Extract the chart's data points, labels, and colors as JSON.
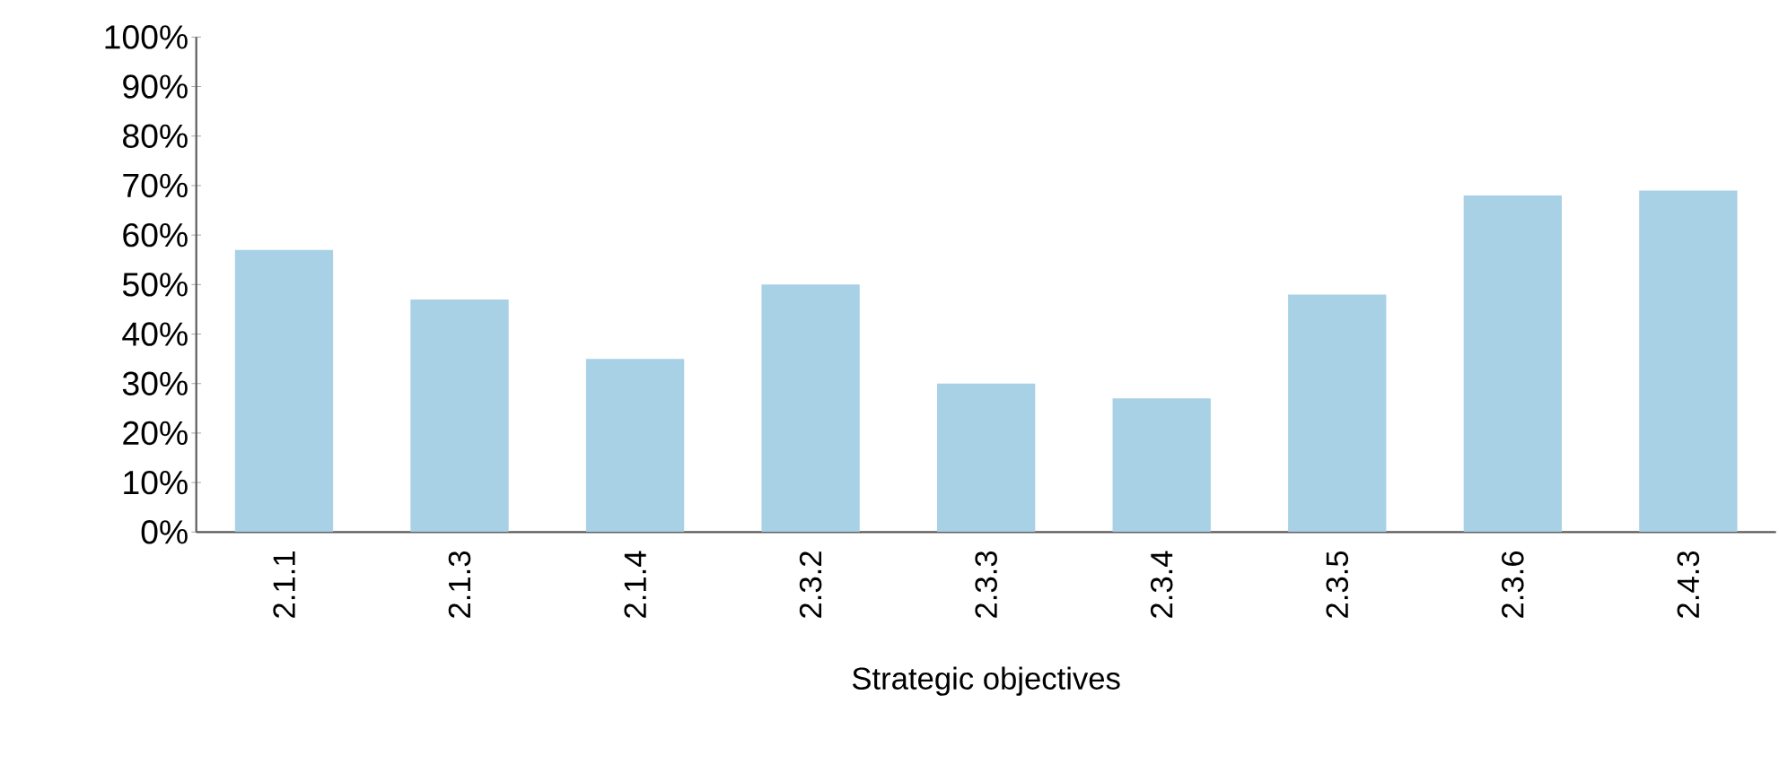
{
  "chart_data": {
    "type": "bar",
    "xlabel": "Strategic objectives",
    "categories": [
      "2.1.1",
      "2.1.3",
      "2.1.4",
      "2.3.2",
      "2.3.3",
      "2.3.4",
      "2.3.5",
      "2.3.6",
      "2.4.3"
    ],
    "values": [
      57,
      47,
      35,
      50,
      30,
      27,
      48,
      68,
      69
    ],
    "color": "#a9d1e6",
    "ylim": [
      0,
      100
    ],
    "yticks": [
      {
        "value": 0,
        "label": "0%"
      },
      {
        "value": 10,
        "label": "10%"
      },
      {
        "value": 20,
        "label": "20%"
      },
      {
        "value": 30,
        "label": "30%"
      },
      {
        "value": 40,
        "label": "40%"
      },
      {
        "value": 50,
        "label": "50%"
      },
      {
        "value": 60,
        "label": "60%"
      },
      {
        "value": 70,
        "label": "70%"
      },
      {
        "value": 80,
        "label": "80%"
      },
      {
        "value": 90,
        "label": "90%"
      },
      {
        "value": 100,
        "label": "100%"
      }
    ]
  }
}
